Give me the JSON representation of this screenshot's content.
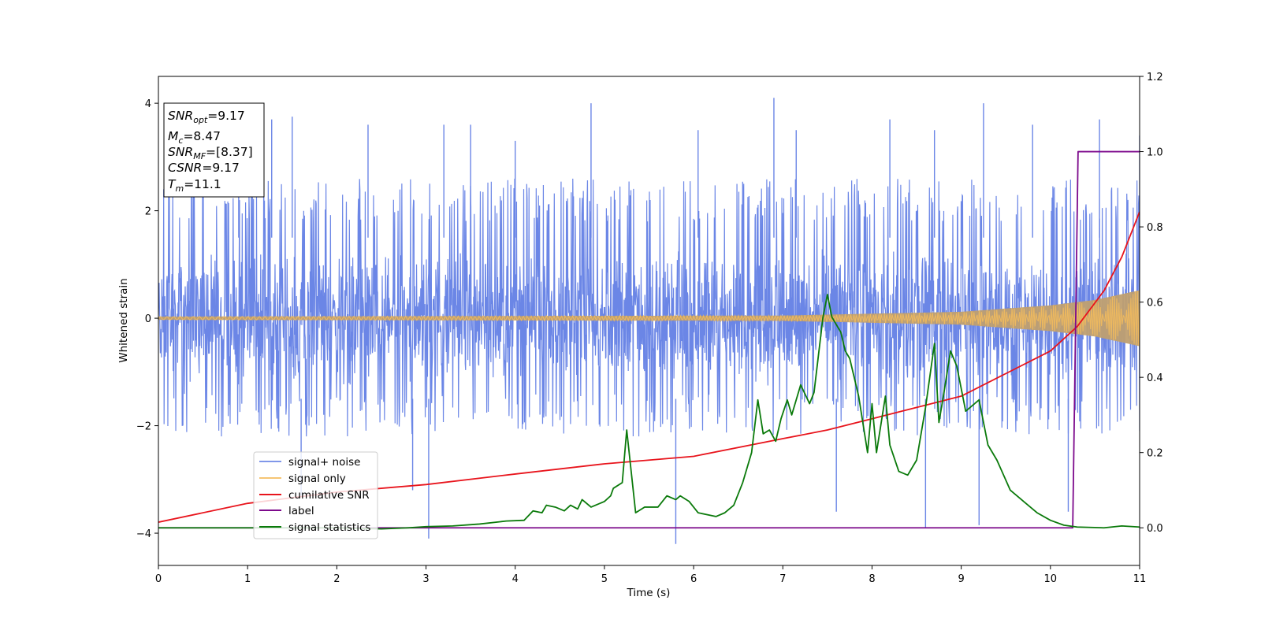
{
  "chart_data": {
    "type": "line",
    "xlabel": "Time (s)",
    "ylabel": "Whitened strain",
    "xlim": [
      0,
      11
    ],
    "ylim_left": [
      -4.6,
      4.5
    ],
    "ylim_right": [
      -0.1,
      1.2
    ],
    "x_ticks": [
      "0",
      "1",
      "2",
      "3",
      "4",
      "5",
      "6",
      "7",
      "8",
      "9",
      "10",
      "11"
    ],
    "y_ticks_left": [
      "−4",
      "−2",
      "0",
      "2",
      "4"
    ],
    "y_ticks_right": [
      "0.0",
      "0.2",
      "0.4",
      "0.6",
      "0.8",
      "1.0",
      "1.2"
    ],
    "grid": false,
    "legend_position": "lower-left",
    "annotation": [
      {
        "sym": "SNR",
        "sub": "opt",
        "value": "=9.17"
      },
      {
        "sym": "M",
        "sub": "c",
        "value": "=8.47"
      },
      {
        "sym": "SNR",
        "sub": "MF",
        "value": "=[8.37]"
      },
      {
        "sym": "CSNR",
        "sub": "",
        "value": "=9.17"
      },
      {
        "sym": "T",
        "sub": "m",
        "value": "=11.1"
      }
    ],
    "series": [
      {
        "name": "signal+ noise",
        "axis": "left",
        "color": "#6b86e6",
        "style": "noise",
        "band": [
          -2.2,
          2.6
        ],
        "spikes": [
          [
            0.9,
            3.0
          ],
          [
            1.27,
            3.7
          ],
          [
            1.5,
            3.75
          ],
          [
            1.6,
            -3.3
          ],
          [
            2.35,
            3.6
          ],
          [
            2.85,
            -3.2
          ],
          [
            3.03,
            -4.1
          ],
          [
            3.2,
            3.6
          ],
          [
            3.5,
            3.6
          ],
          [
            4.0,
            3.3
          ],
          [
            4.85,
            4.0
          ],
          [
            5.8,
            -4.2
          ],
          [
            6.05,
            3.5
          ],
          [
            6.9,
            4.1
          ],
          [
            7.15,
            3.5
          ],
          [
            7.6,
            -3.6
          ],
          [
            8.2,
            3.7
          ],
          [
            8.6,
            -3.9
          ],
          [
            8.7,
            3.5
          ],
          [
            9.2,
            -3.85
          ],
          [
            9.25,
            4.0
          ],
          [
            9.8,
            3.6
          ],
          [
            10.2,
            -3.6
          ],
          [
            10.55,
            3.7
          ],
          [
            11.0,
            3.4
          ]
        ]
      },
      {
        "name": "signal only",
        "axis": "left",
        "color": "#f5bc5c",
        "style": "chirp",
        "envelope": [
          [
            0,
            0.03
          ],
          [
            7,
            0.05
          ],
          [
            9,
            0.12
          ],
          [
            10,
            0.24
          ],
          [
            10.5,
            0.34
          ],
          [
            11,
            0.52
          ]
        ]
      },
      {
        "name": "cumilative SNR",
        "axis": "right",
        "color": "#e8141c",
        "points": [
          [
            0,
            0.015
          ],
          [
            1,
            0.065
          ],
          [
            2,
            0.095
          ],
          [
            3,
            0.115
          ],
          [
            4,
            0.143
          ],
          [
            5,
            0.17
          ],
          [
            6,
            0.19
          ],
          [
            7,
            0.237
          ],
          [
            7.5,
            0.26
          ],
          [
            8,
            0.29
          ],
          [
            8.5,
            0.32
          ],
          [
            9,
            0.35
          ],
          [
            9.5,
            0.41
          ],
          [
            10,
            0.47
          ],
          [
            10.3,
            0.535
          ],
          [
            10.6,
            0.63
          ],
          [
            10.8,
            0.72
          ],
          [
            11,
            0.84
          ]
        ]
      },
      {
        "name": "label",
        "axis": "right",
        "color": "#7d0a8c",
        "points": [
          [
            0,
            0.0
          ],
          [
            10.25,
            0.0
          ],
          [
            10.31,
            1.0
          ],
          [
            11,
            1.0
          ]
        ]
      },
      {
        "name": "signal statistics",
        "axis": "right",
        "color": "#0b7a0b",
        "points": [
          [
            0,
            0.0
          ],
          [
            1,
            0.0
          ],
          [
            2,
            0.0
          ],
          [
            2.5,
            -0.003
          ],
          [
            2.8,
            0.0
          ],
          [
            3.0,
            0.003
          ],
          [
            3.3,
            0.005
          ],
          [
            3.6,
            0.01
          ],
          [
            3.9,
            0.018
          ],
          [
            4.1,
            0.02
          ],
          [
            4.2,
            0.045
          ],
          [
            4.3,
            0.04
          ],
          [
            4.35,
            0.06
          ],
          [
            4.45,
            0.055
          ],
          [
            4.55,
            0.045
          ],
          [
            4.62,
            0.06
          ],
          [
            4.7,
            0.05
          ],
          [
            4.75,
            0.075
          ],
          [
            4.85,
            0.055
          ],
          [
            4.9,
            0.06
          ],
          [
            5.0,
            0.07
          ],
          [
            5.07,
            0.085
          ],
          [
            5.1,
            0.105
          ],
          [
            5.2,
            0.12
          ],
          [
            5.25,
            0.26
          ],
          [
            5.3,
            0.15
          ],
          [
            5.35,
            0.04
          ],
          [
            5.45,
            0.055
          ],
          [
            5.6,
            0.055
          ],
          [
            5.7,
            0.085
          ],
          [
            5.8,
            0.075
          ],
          [
            5.85,
            0.085
          ],
          [
            5.95,
            0.07
          ],
          [
            6.05,
            0.04
          ],
          [
            6.25,
            0.03
          ],
          [
            6.35,
            0.04
          ],
          [
            6.45,
            0.06
          ],
          [
            6.55,
            0.12
          ],
          [
            6.65,
            0.2
          ],
          [
            6.72,
            0.34
          ],
          [
            6.78,
            0.25
          ],
          [
            6.85,
            0.26
          ],
          [
            6.92,
            0.23
          ],
          [
            6.98,
            0.29
          ],
          [
            7.05,
            0.34
          ],
          [
            7.1,
            0.3
          ],
          [
            7.2,
            0.38
          ],
          [
            7.3,
            0.33
          ],
          [
            7.35,
            0.36
          ],
          [
            7.45,
            0.56
          ],
          [
            7.5,
            0.62
          ],
          [
            7.55,
            0.56
          ],
          [
            7.65,
            0.52
          ],
          [
            7.7,
            0.47
          ],
          [
            7.75,
            0.45
          ],
          [
            7.85,
            0.35
          ],
          [
            7.95,
            0.2
          ],
          [
            8.0,
            0.33
          ],
          [
            8.05,
            0.2
          ],
          [
            8.15,
            0.35
          ],
          [
            8.2,
            0.22
          ],
          [
            8.3,
            0.15
          ],
          [
            8.4,
            0.14
          ],
          [
            8.5,
            0.18
          ],
          [
            8.6,
            0.32
          ],
          [
            8.7,
            0.49
          ],
          [
            8.75,
            0.28
          ],
          [
            8.8,
            0.35
          ],
          [
            8.88,
            0.47
          ],
          [
            8.95,
            0.43
          ],
          [
            9.05,
            0.31
          ],
          [
            9.15,
            0.33
          ],
          [
            9.2,
            0.34
          ],
          [
            9.3,
            0.22
          ],
          [
            9.4,
            0.18
          ],
          [
            9.55,
            0.1
          ],
          [
            9.7,
            0.07
          ],
          [
            9.85,
            0.04
          ],
          [
            10.0,
            0.02
          ],
          [
            10.15,
            0.007
          ],
          [
            10.3,
            0.002
          ],
          [
            10.6,
            0.0
          ],
          [
            10.8,
            0.005
          ],
          [
            11,
            0.002
          ]
        ]
      }
    ]
  }
}
